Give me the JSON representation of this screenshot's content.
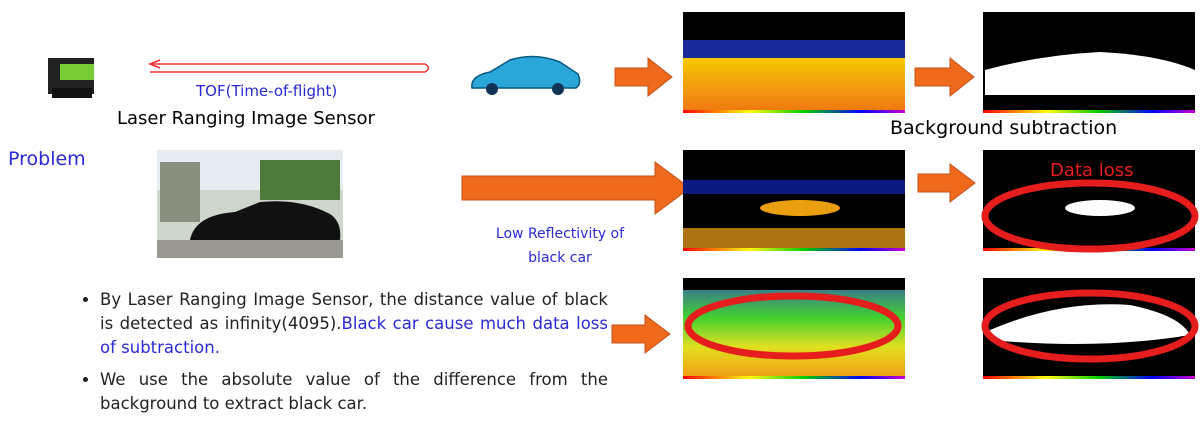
{
  "sensor": {
    "tof_label": "TOF(Time-of-flight)",
    "name": "Laser Ranging Image Sensor"
  },
  "pipeline": {
    "caption": "Background subtraction"
  },
  "problem": {
    "heading": "Problem",
    "reflectivity_label": [
      "Low Reflectivity of",
      "black car"
    ],
    "data_loss": "Data loss"
  },
  "bullets": [
    {
      "text": "By Laser Ranging Image Sensor, the distance value of black is detected as infinity(4095).",
      "highlight": "Black car cause much data loss of subtraction."
    },
    {
      "text": "We use the absolute value of the difference from the background to extract black car."
    }
  ]
}
